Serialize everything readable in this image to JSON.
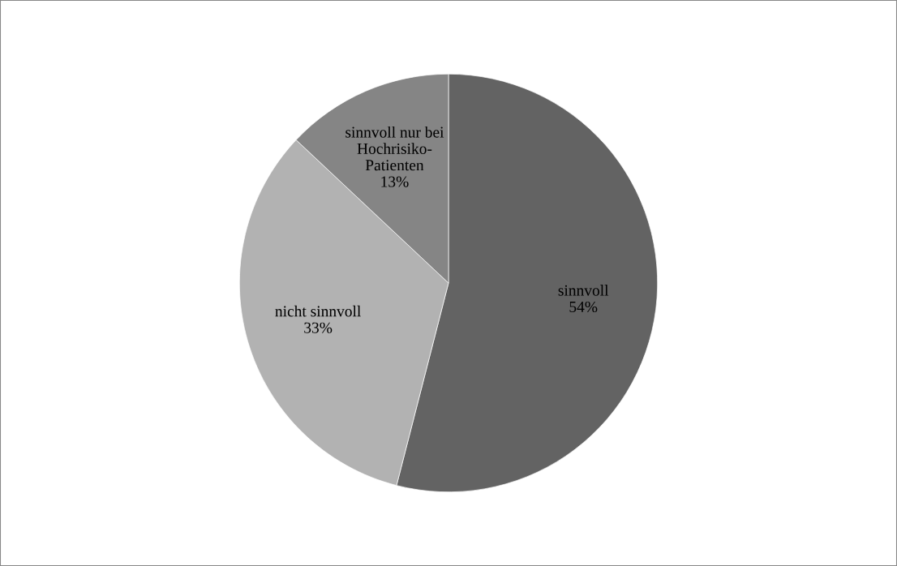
{
  "chart_data": {
    "type": "pie",
    "categories": [
      "sinnvoll",
      "nicht sinnvoll",
      "sinnvoll nur bei\nHochrisiko-\nPatienten"
    ],
    "values": [
      54,
      33,
      13
    ],
    "colors": [
      "#636363",
      "#b2b2b2",
      "#858585"
    ],
    "value_labels": [
      "54%",
      "33%",
      "13%"
    ]
  }
}
